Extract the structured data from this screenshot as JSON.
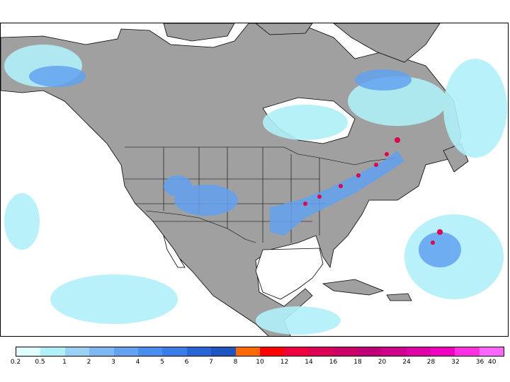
{
  "map": {
    "land_color": "#a0a0a0",
    "ocean_color": "#ffffff",
    "border_color": "#000000"
  },
  "legend": {
    "colors": [
      "#e0ffff",
      "#b0f0f8",
      "#9ad2f6",
      "#80b8f4",
      "#62a2f0",
      "#4a8ff0",
      "#3a7ce8",
      "#2866d8",
      "#1f55c0",
      "#ff6a00",
      "#ff0000",
      "#ee0040",
      "#dd0055",
      "#cc0066",
      "#c00077",
      "#d0008c",
      "#e000a8",
      "#f000c0",
      "#ff30e0",
      "#ff66ff"
    ],
    "labels": [
      "0.2",
      "0.5",
      "1",
      "2",
      "3",
      "4",
      "5",
      "6",
      "7",
      "8",
      "10",
      "12",
      "14",
      "16",
      "18",
      "20",
      "24",
      "28",
      "32",
      "36",
      "40"
    ]
  }
}
